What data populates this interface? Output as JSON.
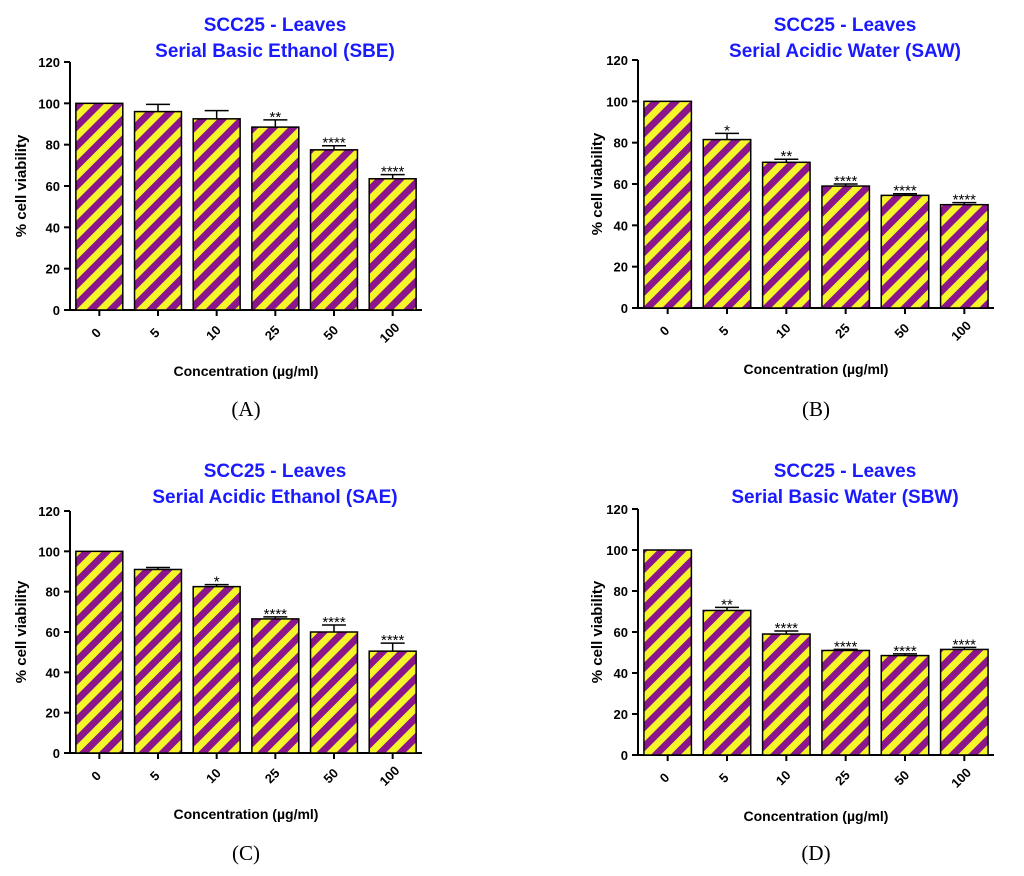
{
  "colors": {
    "title": "#1a1aff",
    "stripe_purple": "#8b168b",
    "stripe_yellow": "#f5f52a",
    "axis": "#000000"
  },
  "chart_data": [
    {
      "type": "bar",
      "panel": "(A)",
      "title": [
        "SCC25 - Leaves",
        "Serial Basic Ethanol (SBE)"
      ],
      "xlabel": "Concentration (µg/ml)",
      "ylabel": "% cell viability",
      "ylim": [
        0,
        120
      ],
      "yticks": [
        0,
        20,
        40,
        60,
        80,
        100,
        120
      ],
      "categories": [
        "0",
        "5",
        "10",
        "25",
        "50",
        "100"
      ],
      "values": [
        100,
        96,
        92.5,
        88.5,
        77.5,
        63.5
      ],
      "errors": [
        0,
        3.5,
        4,
        3.5,
        2,
        2
      ],
      "significance": [
        "",
        "",
        "",
        "**",
        "****",
        "****"
      ]
    },
    {
      "type": "bar",
      "panel": "(B)",
      "title": [
        "SCC25 - Leaves",
        "Serial Acidic Water (SAW)"
      ],
      "xlabel": "Concentration (µg/ml)",
      "ylabel": "% cell viability",
      "ylim": [
        0,
        120
      ],
      "yticks": [
        0,
        20,
        40,
        60,
        80,
        100,
        120
      ],
      "categories": [
        "0",
        "5",
        "10",
        "25",
        "50",
        "100"
      ],
      "values": [
        100,
        81.5,
        70.5,
        59,
        54.5,
        50
      ],
      "errors": [
        0,
        3,
        1.5,
        1,
        0.8,
        1
      ],
      "significance": [
        "",
        "*",
        "**",
        "****",
        "****",
        "****"
      ]
    },
    {
      "type": "bar",
      "panel": "(C)",
      "title": [
        "SCC25 - Leaves",
        "Serial Acidic Ethanol (SAE)"
      ],
      "xlabel": "Concentration (µg/ml)",
      "ylabel": "% cell viability",
      "ylim": [
        0,
        120
      ],
      "yticks": [
        0,
        20,
        40,
        60,
        80,
        100,
        120
      ],
      "categories": [
        "0",
        "5",
        "10",
        "25",
        "50",
        "100"
      ],
      "values": [
        100,
        91,
        82.5,
        66.5,
        60,
        50.5
      ],
      "errors": [
        0,
        1,
        1,
        1,
        3.5,
        4
      ],
      "significance": [
        "",
        "",
        "*",
        "****",
        "****",
        "****"
      ]
    },
    {
      "type": "bar",
      "panel": "(D)",
      "title": [
        "SCC25 - Leaves",
        "Serial Basic Water (SBW)"
      ],
      "xlabel": "Concentration (µg/ml)",
      "ylabel": "% cell viability",
      "ylim": [
        0,
        120
      ],
      "yticks": [
        0,
        20,
        40,
        60,
        80,
        100,
        120
      ],
      "categories": [
        "0",
        "5",
        "10",
        "25",
        "50",
        "100"
      ],
      "values": [
        100,
        70.5,
        59,
        51,
        48.5,
        51.5
      ],
      "errors": [
        0,
        1.5,
        1.5,
        0.5,
        0.8,
        1
      ],
      "significance": [
        "",
        "**",
        "****",
        "****",
        "****",
        "****"
      ]
    }
  ]
}
